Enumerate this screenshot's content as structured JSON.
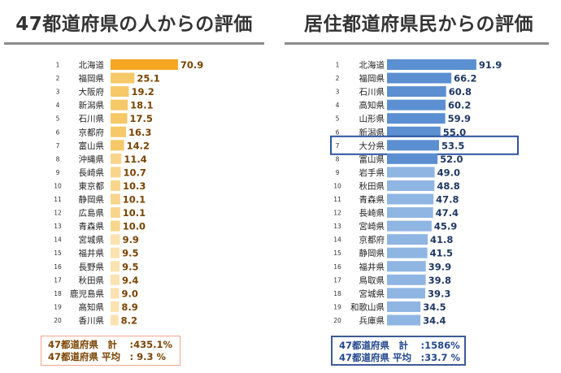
{
  "left": {
    "title": "47都道府県の人からの評価",
    "summary": {
      "total": "47都道府県　計　 :435.1%",
      "average": "47都道府県 平均　: 9.3 %"
    }
  },
  "right": {
    "title": "居住都道府県民からの評価",
    "summary": {
      "total": "47都道府県　計　 :1586%",
      "average": "47都道府県 平均　:33.7 %"
    }
  },
  "chart_data": [
    {
      "type": "bar",
      "orientation": "horizontal",
      "title": "47都道府県の人からの評価",
      "ranks": [
        "1",
        "2",
        "3",
        "4",
        "5",
        "6",
        "7",
        "8",
        "9",
        "10",
        "11",
        "12",
        "13",
        "14",
        "15",
        "16",
        "17",
        "18",
        "19",
        "20"
      ],
      "categories": [
        "北海道",
        "福岡県",
        "大阪府",
        "新潟県",
        "石川県",
        "京都府",
        "富山県",
        "沖縄県",
        "長崎県",
        "東京都",
        "静岡県",
        "広島県",
        "青森県",
        "宮城県",
        "福井県",
        "長野県",
        "秋田県",
        "鹿児島県",
        "高知県",
        "香川県"
      ],
      "values": [
        70.9,
        25.1,
        19.2,
        18.1,
        17.5,
        16.3,
        14.2,
        11.4,
        10.7,
        10.3,
        10.1,
        10.1,
        10.0,
        9.9,
        9.5,
        9.5,
        9.4,
        9.0,
        8.9,
        8.2
      ],
      "value_labels": [
        "70.9",
        "25.1",
        "19.2",
        "18.1",
        "17.5",
        "16.3",
        "14.2",
        "11.4",
        "10.7",
        "10.3",
        "10.1",
        "10.1",
        "10.0",
        "9.9",
        "9.5",
        "9.5",
        "9.4",
        "9.0",
        "8.9",
        "8.2"
      ],
      "colors": {
        "top": "#f5a623",
        "high": "#f7c867",
        "mid": "#f9d58c",
        "low": "#fbe2b0",
        "label": "#7a4300"
      },
      "xlim": [
        0,
        71
      ]
    },
    {
      "type": "bar",
      "orientation": "horizontal",
      "title": "居住都道府県民からの評価",
      "ranks": [
        "1",
        "2",
        "3",
        "4",
        "5",
        "6",
        "7",
        "8",
        "9",
        "10",
        "11",
        "12",
        "13",
        "14",
        "15",
        "16",
        "17",
        "18",
        "19",
        "20"
      ],
      "categories": [
        "北海道",
        "福岡県",
        "石川県",
        "高知県",
        "山形県",
        "新潟県",
        "大分県",
        "富山県",
        "岩手県",
        "秋田県",
        "青森県",
        "長崎県",
        "宮崎県",
        "京都府",
        "静岡県",
        "福井県",
        "鳥取県",
        "宮城県",
        "和歌山県",
        "兵庫県"
      ],
      "values": [
        91.9,
        66.2,
        60.8,
        60.2,
        59.9,
        55.0,
        53.5,
        52.0,
        49.0,
        48.8,
        47.8,
        47.4,
        45.9,
        41.8,
        41.5,
        39.9,
        39.8,
        39.3,
        34.5,
        34.4
      ],
      "value_labels": [
        "91.9",
        "66.2",
        "60.8",
        "60.2",
        "59.9",
        "55.0",
        "53.5",
        "52.0",
        "49.0",
        "48.8",
        "47.8",
        "47.4",
        "45.9",
        "41.8",
        "41.5",
        "39.9",
        "39.8",
        "39.3",
        "34.5",
        "34.4"
      ],
      "highlight_category": "大分県",
      "colors": {
        "dark": "#5b8fd1",
        "light": "#8fb5e3",
        "highlight_box": "#2f54a0",
        "label": "#1f3864"
      },
      "xlim": [
        0,
        92
      ]
    }
  ]
}
